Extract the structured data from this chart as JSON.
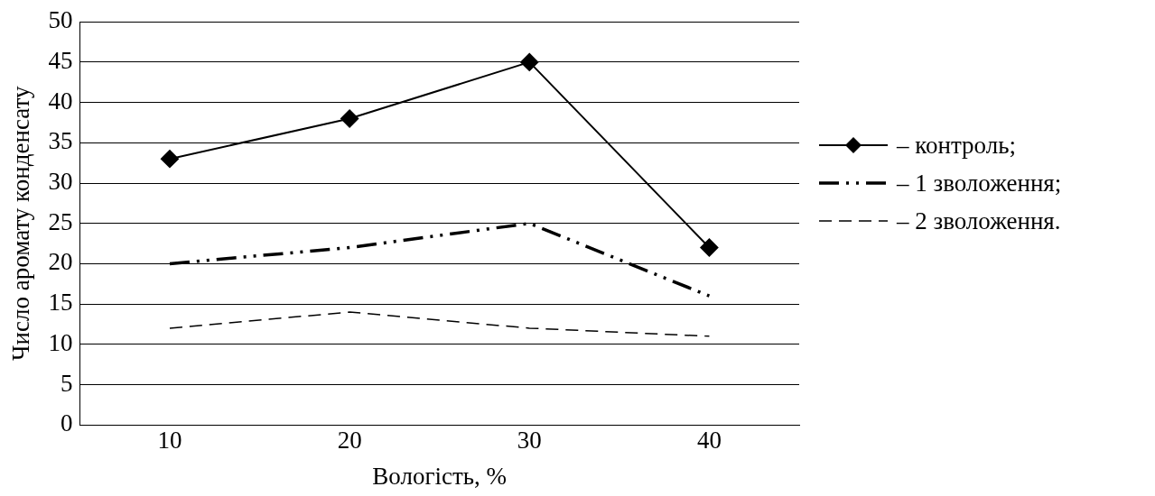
{
  "chart_data": {
    "type": "line",
    "xlabel": "Вологість, %",
    "ylabel": "Число аромату конденсату",
    "categories": [
      "10",
      "20",
      "30",
      "40"
    ],
    "series": [
      {
        "name": "– контроль;",
        "color": "#000000",
        "values": [
          33,
          38,
          45,
          22
        ],
        "marker": "diamond",
        "line_style": "solid"
      },
      {
        "name": "– 1 зволоження;",
        "color": "#000000",
        "values": [
          20,
          22,
          25,
          16
        ],
        "marker": "none",
        "line_style": "dashed"
      },
      {
        "name": "– 2 зволоження.",
        "color": "#000000",
        "values": [
          12,
          14,
          12,
          11
        ],
        "marker": "none",
        "line_style": "dashed"
      }
    ],
    "ylim": [
      0,
      50
    ],
    "yticks": [
      0,
      5,
      10,
      15,
      20,
      25,
      30,
      35,
      40,
      45,
      50
    ],
    "grid": "y",
    "legend": "right"
  }
}
